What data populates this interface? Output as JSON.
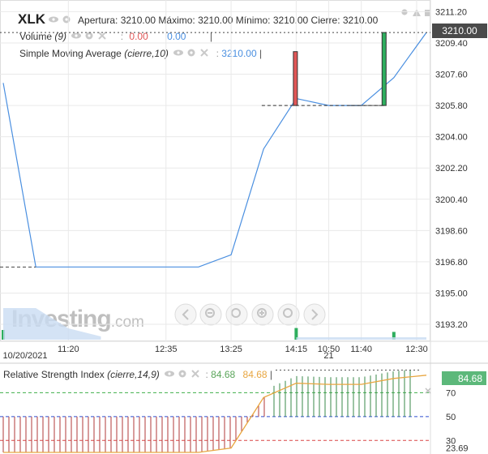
{
  "header": {
    "ticker": "XLK",
    "ohlc_line": "Apertura: 3210.00 Máximo: 3210.00 Mínimo: 3210.00 Cierre: 3210.00",
    "volume_label": "Volume",
    "volume_param": "(9)",
    "volume_val1": "0.00",
    "volume_val2": "0.00",
    "sma_label": "Simple Moving Average",
    "sma_param": "(cierre,10)",
    "sma_value": "3210.00",
    "rsi_label": "Relative Strength Index",
    "rsi_param": "(cierre,14,9)",
    "rsi_val1": "84.68",
    "rsi_val2": "84.68"
  },
  "colors": {
    "up": "#2eae5e",
    "down": "#e05656",
    "sma": "#4a8fe0",
    "rsi_line": "#e8a640",
    "grid": "#e9e9e9",
    "axis_bg": "#ffffff",
    "price_tag": "#4a4a4a",
    "rsi_tag": "#5cb87a"
  },
  "watermark": {
    "brand": "Investing",
    "suffix": ".com"
  },
  "axis": {
    "price_tag": "3210.00",
    "rsi_tag": "84.68"
  },
  "chart_data": [
    {
      "type": "line",
      "title": "XLK",
      "x_labels": [
        "11:20",
        "12:35",
        "13:25",
        "14:15",
        "10:50",
        "11:40",
        "12:30"
      ],
      "date_labels": [
        "10/20/2021",
        "21"
      ],
      "ylim": [
        3192.5,
        3211.5
      ],
      "y_ticks": [
        3211.2,
        3209.4,
        3207.6,
        3205.8,
        3204.0,
        3202.2,
        3200.4,
        3198.6,
        3196.8,
        3195.0,
        3193.2
      ],
      "candles": [
        {
          "label": "10:50",
          "open": 3208.9,
          "close": 3205.8,
          "high": 3208.9,
          "low": 3205.8,
          "direction": "down"
        },
        {
          "label": "11:40",
          "open": 3205.8,
          "close": 3210.0,
          "high": 3210.0,
          "low": 3205.8,
          "direction": "up"
        }
      ],
      "series": [
        {
          "name": "Simple Moving Average (cierre,10)",
          "points": [
            {
              "i": 0,
              "y": 3207.1
            },
            {
              "i": 1,
              "y": 3196.5
            },
            {
              "i": 2,
              "y": 3196.5
            },
            {
              "i": 3,
              "y": 3196.5
            },
            {
              "i": 4,
              "y": 3196.5
            },
            {
              "i": 5,
              "y": 3196.5
            },
            {
              "i": 6,
              "y": 3196.5
            },
            {
              "i": 7,
              "y": 3197.2
            },
            {
              "i": 8,
              "y": 3203.3
            },
            {
              "i": 9,
              "y": 3206.2
            },
            {
              "i": 10,
              "y": 3205.8
            },
            {
              "i": 11,
              "y": 3205.8
            },
            {
              "i": 12,
              "y": 3207.4
            },
            {
              "i": 13,
              "y": 3210.0
            }
          ]
        }
      ],
      "volume": [
        {
          "i": 0,
          "v": 0.5,
          "direction": "up"
        },
        {
          "i": 9,
          "v": 0.6,
          "direction": "up"
        },
        {
          "i": 12,
          "v": 0.4,
          "direction": "up"
        }
      ]
    },
    {
      "type": "line",
      "title": "Relative Strength Index (cierre,14,9)",
      "ylim": [
        20,
        90
      ],
      "y_ticks": [
        70,
        50,
        30,
        23.69
      ],
      "levels": [
        70,
        50,
        30
      ],
      "series": [
        {
          "name": "Relative Strength Index (cierre,14,9)",
          "points": [
            {
              "i": 0,
              "y": 20
            },
            {
              "i": 1,
              "y": 20
            },
            {
              "i": 2,
              "y": 20
            },
            {
              "i": 3,
              "y": 20
            },
            {
              "i": 4,
              "y": 20
            },
            {
              "i": 5,
              "y": 20
            },
            {
              "i": 6,
              "y": 20
            },
            {
              "i": 7,
              "y": 23.7
            },
            {
              "i": 8,
              "y": 66
            },
            {
              "i": 9,
              "y": 78
            },
            {
              "i": 10,
              "y": 77
            },
            {
              "i": 11,
              "y": 77
            },
            {
              "i": 12,
              "y": 82
            },
            {
              "i": 13,
              "y": 84.68
            }
          ]
        }
      ]
    }
  ]
}
